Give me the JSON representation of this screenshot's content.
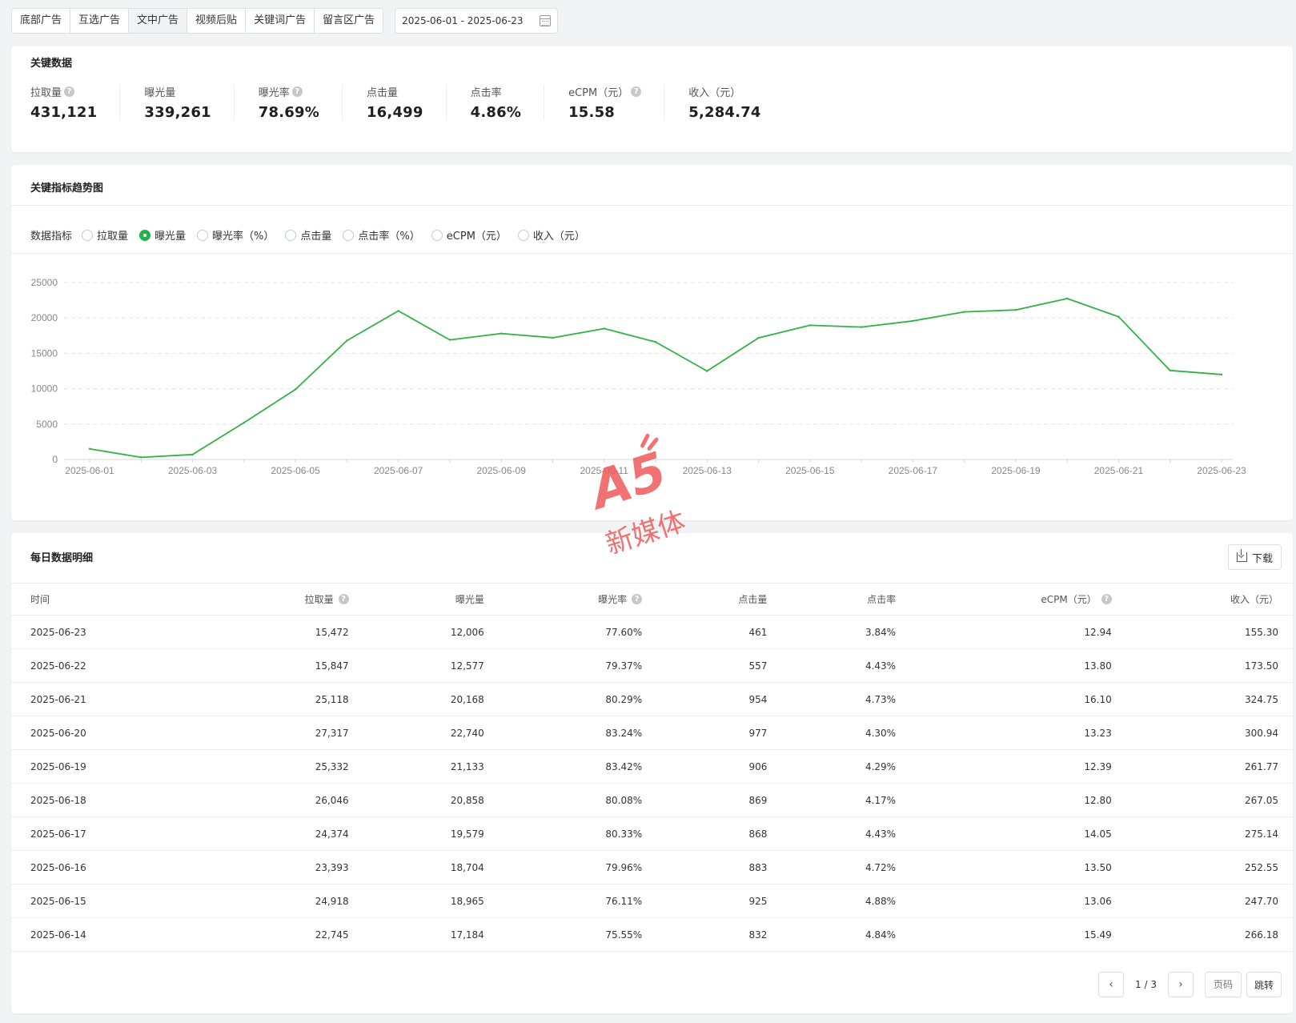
{
  "tabs": [
    {
      "label": "底部广告",
      "active": false
    },
    {
      "label": "互选广告",
      "active": false
    },
    {
      "label": "文中广告",
      "active": true
    },
    {
      "label": "视频后贴",
      "active": false
    },
    {
      "label": "关键词广告",
      "active": false
    },
    {
      "label": "留言区广告",
      "active": false
    }
  ],
  "date_range": "2025-06-01 - 2025-06-23",
  "key_data": {
    "title": "关键数据",
    "stats": [
      {
        "label": "拉取量",
        "value": "431,121",
        "help": true
      },
      {
        "label": "曝光量",
        "value": "339,261",
        "help": false
      },
      {
        "label": "曝光率",
        "value": "78.69%",
        "help": true
      },
      {
        "label": "点击量",
        "value": "16,499",
        "help": false
      },
      {
        "label": "点击率",
        "value": "4.86%",
        "help": false
      },
      {
        "label": "eCPM（元）",
        "value": "15.58",
        "help": true
      },
      {
        "label": "收入（元）",
        "value": "5,284.74",
        "help": false
      }
    ]
  },
  "trend": {
    "title": "关键指标趋势图",
    "metrics_label": "数据指标",
    "metrics": [
      {
        "label": "拉取量",
        "checked": false
      },
      {
        "label": "曝光量",
        "checked": true
      },
      {
        "label": "曝光率（%）",
        "checked": false
      },
      {
        "label": "点击量",
        "checked": false
      },
      {
        "label": "点击率（%）",
        "checked": false
      },
      {
        "label": "eCPM（元）",
        "checked": false
      },
      {
        "label": "收入（元）",
        "checked": false
      }
    ]
  },
  "chart_data": {
    "type": "line",
    "x": [
      "2025-06-01",
      "2025-06-02",
      "2025-06-03",
      "2025-06-04",
      "2025-06-05",
      "2025-06-06",
      "2025-06-07",
      "2025-06-08",
      "2025-06-09",
      "2025-06-10",
      "2025-06-11",
      "2025-06-12",
      "2025-06-13",
      "2025-06-14",
      "2025-06-15",
      "2025-06-16",
      "2025-06-17",
      "2025-06-18",
      "2025-06-19",
      "2025-06-20",
      "2025-06-21",
      "2025-06-22",
      "2025-06-23"
    ],
    "x_tick_labels": [
      "2025-06-01",
      "2025-06-03",
      "2025-06-05",
      "2025-06-07",
      "2025-06-09",
      "2025-06-11",
      "2025-06-13",
      "2025-06-15",
      "2025-06-17",
      "2025-06-19",
      "2025-06-21",
      "2025-06-23"
    ],
    "series": [
      {
        "values": [
          1500,
          300,
          700,
          5200,
          9900,
          16800,
          21000,
          16900,
          17800,
          17200,
          18500,
          16600,
          12500,
          17184,
          18965,
          18704,
          19579,
          20858,
          21133,
          22740,
          20168,
          12577,
          12006
        ],
        "color": "#2fb344"
      }
    ],
    "yticks": [
      0,
      5000,
      10000,
      15000,
      20000,
      25000
    ],
    "ylim": [
      0,
      25000
    ],
    "grid": true
  },
  "table": {
    "title": "每日数据明细",
    "download_label": "下载",
    "columns": [
      {
        "label": "时间",
        "help": false
      },
      {
        "label": "拉取量",
        "help": true
      },
      {
        "label": "曝光量",
        "help": false
      },
      {
        "label": "曝光率",
        "help": true
      },
      {
        "label": "点击量",
        "help": false
      },
      {
        "label": "点击率",
        "help": false
      },
      {
        "label": "eCPM（元）",
        "help": true
      },
      {
        "label": "收入（元）",
        "help": false
      }
    ],
    "rows": [
      [
        "2025-06-23",
        "15,472",
        "12,006",
        "77.60%",
        "461",
        "3.84%",
        "12.94",
        "155.30"
      ],
      [
        "2025-06-22",
        "15,847",
        "12,577",
        "79.37%",
        "557",
        "4.43%",
        "13.80",
        "173.50"
      ],
      [
        "2025-06-21",
        "25,118",
        "20,168",
        "80.29%",
        "954",
        "4.73%",
        "16.10",
        "324.75"
      ],
      [
        "2025-06-20",
        "27,317",
        "22,740",
        "83.24%",
        "977",
        "4.30%",
        "13.23",
        "300.94"
      ],
      [
        "2025-06-19",
        "25,332",
        "21,133",
        "83.42%",
        "906",
        "4.29%",
        "12.39",
        "261.77"
      ],
      [
        "2025-06-18",
        "26,046",
        "20,858",
        "80.08%",
        "869",
        "4.17%",
        "12.80",
        "267.05"
      ],
      [
        "2025-06-17",
        "24,374",
        "19,579",
        "80.33%",
        "868",
        "4.43%",
        "14.05",
        "275.14"
      ],
      [
        "2025-06-16",
        "23,393",
        "18,704",
        "79.96%",
        "883",
        "4.72%",
        "13.50",
        "252.55"
      ],
      [
        "2025-06-15",
        "24,918",
        "18,965",
        "76.11%",
        "925",
        "4.88%",
        "13.06",
        "247.70"
      ],
      [
        "2025-06-14",
        "22,745",
        "17,184",
        "75.55%",
        "832",
        "4.84%",
        "15.49",
        "266.18"
      ]
    ]
  },
  "pager": {
    "prev_icon": "chevron-left-icon",
    "next_icon": "chevron-right-icon",
    "page_info": "1 / 3",
    "page_input_placeholder": "页码",
    "jump_label": "跳转"
  },
  "watermark": {
    "logo_text": "A5",
    "text": "新媒体",
    "color": "#ef5a5a"
  }
}
